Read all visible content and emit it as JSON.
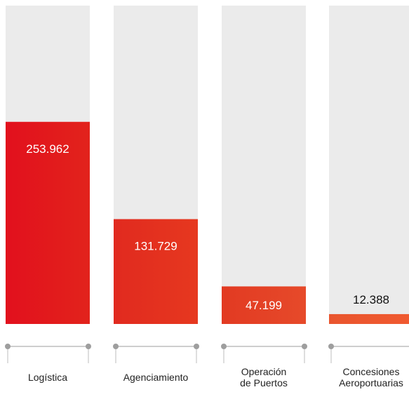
{
  "chart_data": {
    "type": "bar",
    "title": "",
    "xlabel": "",
    "ylabel": "",
    "categories": [
      "Logística",
      "Agenciamiento",
      "Operación\nde Puertos",
      "Concesiones\nAeroportuarias"
    ],
    "values": [
      253962,
      131729,
      47199,
      12388
    ],
    "value_labels": [
      "253.962",
      "131.729",
      "47.199",
      "12.388"
    ],
    "ylim": [
      0,
      400000
    ],
    "grid": false,
    "legend": "none",
    "colors": {
      "track": "#ebebeb",
      "bar_start": [
        "#e2101d",
        "#e12a1f",
        "#e23a22",
        "#e9552e"
      ],
      "bar_end": [
        "#e2231c",
        "#e6381f",
        "#e64a2a",
        "#f05a30"
      ],
      "axis_line": "#bdbdbd",
      "axis_dot": "#9e9e9e",
      "label_inside": "#ffffff",
      "label_above": "#111111"
    }
  }
}
